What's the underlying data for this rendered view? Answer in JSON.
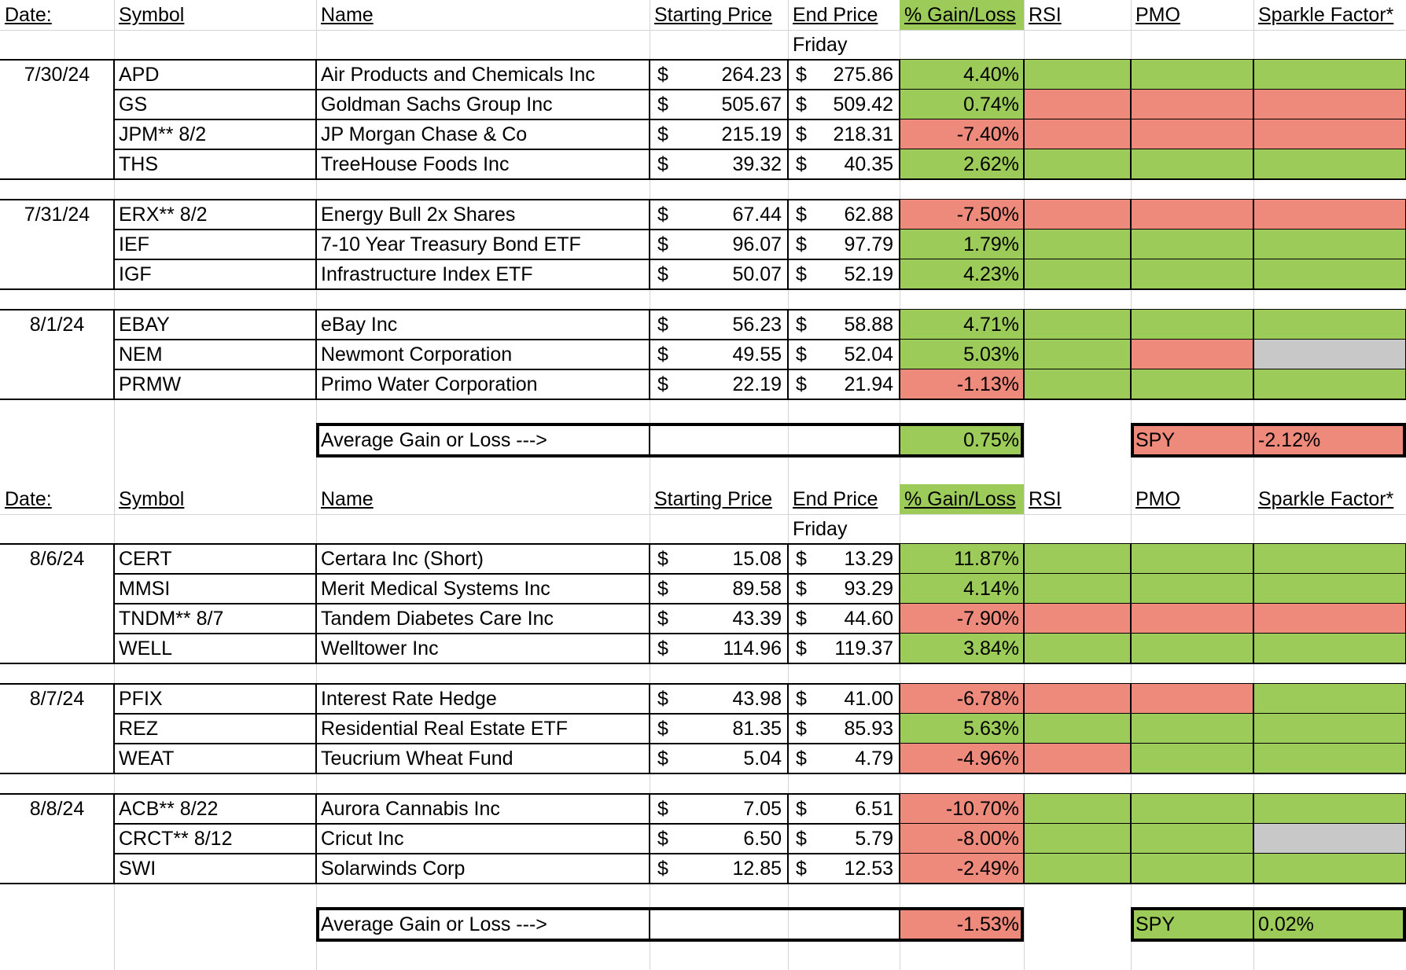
{
  "tables": [
    {
      "headers": {
        "date": "Date:",
        "symbol": "Symbol",
        "name": "Name",
        "start": "Starting Price",
        "end": "End Price",
        "gain": "% Gain/Loss",
        "rsi": "RSI",
        "pmo": "PMO",
        "sparkle": "Sparkle Factor*"
      },
      "subheader": "Friday",
      "groups": [
        {
          "date": "7/30/24",
          "rows": [
            {
              "symbol": "APD",
              "name": "Air Products and Chemicals Inc",
              "start": "264.23",
              "end": "275.86",
              "gain": "4.40%",
              "gain_status": "green",
              "rsi": "green",
              "pmo": "green",
              "sparkle": "green"
            },
            {
              "symbol": "GS",
              "name": "Goldman Sachs Group Inc",
              "start": "505.67",
              "end": "509.42",
              "gain": "0.74%",
              "gain_status": "green",
              "rsi": "red",
              "pmo": "red",
              "sparkle": "red"
            },
            {
              "symbol": "JPM** 8/2",
              "name": "JP Morgan Chase & Co",
              "start": "215.19",
              "end": "218.31",
              "gain": "-7.40%",
              "gain_status": "red",
              "rsi": "red",
              "pmo": "red",
              "sparkle": "red"
            },
            {
              "symbol": "THS",
              "name": "TreeHouse Foods Inc",
              "start": "39.32",
              "end": "40.35",
              "gain": "2.62%",
              "gain_status": "green",
              "rsi": "green",
              "pmo": "green",
              "sparkle": "green"
            }
          ]
        },
        {
          "date": "7/31/24",
          "rows": [
            {
              "symbol": "ERX** 8/2",
              "name": "Energy Bull 2x Shares",
              "start": "67.44",
              "end": "62.88",
              "gain": "-7.50%",
              "gain_status": "red",
              "rsi": "red",
              "pmo": "red",
              "sparkle": "red"
            },
            {
              "symbol": "IEF",
              "name": "7-10 Year Treasury Bond ETF",
              "start": "96.07",
              "end": "97.79",
              "gain": "1.79%",
              "gain_status": "green",
              "rsi": "green",
              "pmo": "green",
              "sparkle": "green"
            },
            {
              "symbol": "IGF",
              "name": "Infrastructure Index ETF",
              "start": "50.07",
              "end": "52.19",
              "gain": "4.23%",
              "gain_status": "green",
              "rsi": "green",
              "pmo": "green",
              "sparkle": "green"
            }
          ]
        },
        {
          "date": "8/1/24",
          "rows": [
            {
              "symbol": "EBAY",
              "name": "eBay Inc",
              "start": "56.23",
              "end": "58.88",
              "gain": "4.71%",
              "gain_status": "green",
              "rsi": "green",
              "pmo": "green",
              "sparkle": "green"
            },
            {
              "symbol": "NEM",
              "name": "Newmont Corporation",
              "start": "49.55",
              "end": "52.04",
              "gain": "5.03%",
              "gain_status": "green",
              "rsi": "green",
              "pmo": "red",
              "sparkle": "gray"
            },
            {
              "symbol": "PRMW",
              "name": "Primo Water Corporation",
              "start": "22.19",
              "end": "21.94",
              "gain": "-1.13%",
              "gain_status": "red",
              "rsi": "green",
              "pmo": "green",
              "sparkle": "green"
            }
          ]
        }
      ],
      "average_label": "Average Gain or Loss --->",
      "average_value": "0.75%",
      "average_status": "green",
      "spy_label": "SPY",
      "spy_value": "-2.12%",
      "spy_status": "red"
    },
    {
      "headers": {
        "date": "Date:",
        "symbol": "Symbol",
        "name": "Name",
        "start": "Starting Price",
        "end": "End Price",
        "gain": "% Gain/Loss",
        "rsi": "RSI",
        "pmo": "PMO",
        "sparkle": "Sparkle Factor*"
      },
      "subheader": "Friday",
      "groups": [
        {
          "date": "8/6/24",
          "rows": [
            {
              "symbol": "CERT",
              "name": "Certara Inc (Short)",
              "start": "15.08",
              "end": "13.29",
              "gain": "11.87%",
              "gain_status": "green",
              "rsi": "green",
              "pmo": "green",
              "sparkle": "green"
            },
            {
              "symbol": "MMSI",
              "name": "Merit Medical Systems Inc",
              "start": "89.58",
              "end": "93.29",
              "gain": "4.14%",
              "gain_status": "green",
              "rsi": "green",
              "pmo": "green",
              "sparkle": "green"
            },
            {
              "symbol": "TNDM** 8/7",
              "name": "Tandem Diabetes Care Inc",
              "start": "43.39",
              "end": "44.60",
              "gain": "-7.90%",
              "gain_status": "red",
              "rsi": "red",
              "pmo": "red",
              "sparkle": "red"
            },
            {
              "symbol": "WELL",
              "name": "Welltower Inc",
              "start": "114.96",
              "end": "119.37",
              "gain": "3.84%",
              "gain_status": "green",
              "rsi": "green",
              "pmo": "green",
              "sparkle": "green"
            }
          ]
        },
        {
          "date": "8/7/24",
          "rows": [
            {
              "symbol": "PFIX",
              "name": "Interest Rate Hedge",
              "start": "43.98",
              "end": "41.00",
              "gain": "-6.78%",
              "gain_status": "red",
              "rsi": "red",
              "pmo": "red",
              "sparkle": "green"
            },
            {
              "symbol": "REZ",
              "name": "Residential Real Estate ETF",
              "start": "81.35",
              "end": "85.93",
              "gain": "5.63%",
              "gain_status": "green",
              "rsi": "green",
              "pmo": "green",
              "sparkle": "green"
            },
            {
              "symbol": "WEAT",
              "name": "Teucrium Wheat Fund",
              "start": "5.04",
              "end": "4.79",
              "gain": "-4.96%",
              "gain_status": "red",
              "rsi": "red",
              "pmo": "green",
              "sparkle": "green"
            }
          ]
        },
        {
          "date": "8/8/24",
          "rows": [
            {
              "symbol": "ACB** 8/22",
              "name": "Aurora Cannabis Inc",
              "start": "7.05",
              "end": "6.51",
              "gain": "-10.70%",
              "gain_status": "red",
              "rsi": "green",
              "pmo": "green",
              "sparkle": "green"
            },
            {
              "symbol": "CRCT** 8/12",
              "name": "Cricut Inc",
              "start": "6.50",
              "end": "5.79",
              "gain": "-8.00%",
              "gain_status": "red",
              "rsi": "green",
              "pmo": "green",
              "sparkle": "gray"
            },
            {
              "symbol": "SWI",
              "name": "Solarwinds Corp",
              "start": "12.85",
              "end": "12.53",
              "gain": "-2.49%",
              "gain_status": "red",
              "rsi": "green",
              "pmo": "green",
              "sparkle": "green"
            }
          ]
        }
      ],
      "average_label": "Average Gain or Loss --->",
      "average_value": "-1.53%",
      "average_status": "red",
      "spy_label": "SPY",
      "spy_value": "0.02%",
      "spy_status": "green"
    }
  ],
  "currency_symbol": "$",
  "colors": {
    "green": "#9CCB5A",
    "red": "#EE8A7C",
    "gray": "#C8C8C8",
    "grid": "#d4d4d4",
    "border": "#000000"
  }
}
